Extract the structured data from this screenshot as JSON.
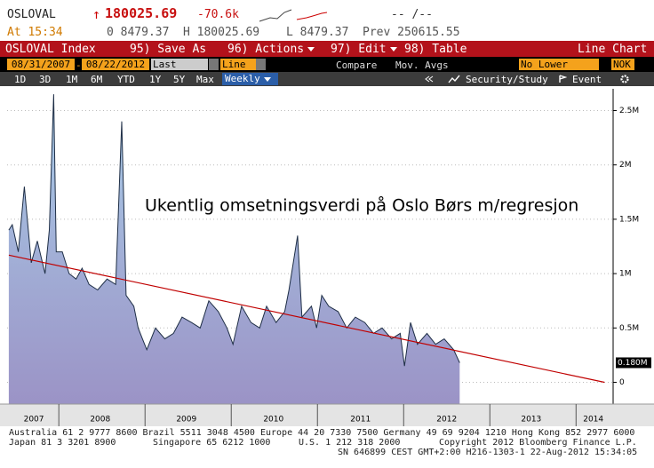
{
  "header": {
    "ticker": "OSLOVAL",
    "arrow": "↑",
    "last": "180025.69",
    "change": "-70.6k",
    "bid_ask": "-- /--",
    "time": "At 15:34",
    "open": "0 8479.37",
    "high": "H 180025.69",
    "low": "L 8479.37",
    "prev": "Prev 250615.55"
  },
  "menu": {
    "security": "OSLOVAL Index",
    "items": [
      "95) Save As",
      "96) Actions",
      "97) Edit",
      "98) Table"
    ],
    "chart_type": "Line Chart"
  },
  "settings": {
    "start": "08/31/2007",
    "dash": "-",
    "end": "08/22/2012",
    "field": "Last Price",
    "style": "Line",
    "compare": "Compare",
    "mov_avgs": "Mov. Avgs",
    "lower": "No Lower Chart",
    "currency": "NOK"
  },
  "toolbar": {
    "ranges": [
      "1D",
      "3D",
      "1M",
      "6M",
      "YTD",
      "1Y",
      "5Y",
      "Max"
    ],
    "period": "Weekly",
    "security_study": "Security/Study",
    "event": "Event"
  },
  "chart_data": {
    "type": "area",
    "annotation": "Ukentlig omsetningsverdi på Oslo Børs m/regresjon",
    "x": [
      2007.42,
      2007.46,
      2007.53,
      2007.6,
      2007.68,
      2007.75,
      2007.84,
      2007.89,
      2007.94,
      2007.97,
      2008.04,
      2008.12,
      2008.2,
      2008.27,
      2008.35,
      2008.45,
      2008.56,
      2008.66,
      2008.73,
      2008.78,
      2008.87,
      2008.92,
      2008.97,
      2009.02,
      2009.12,
      2009.23,
      2009.33,
      2009.43,
      2009.54,
      2009.64,
      2009.74,
      2009.85,
      2009.95,
      2010.02,
      2010.12,
      2010.23,
      2010.33,
      2010.41,
      2010.52,
      2010.62,
      2010.67,
      2010.77,
      2010.82,
      2010.93,
      2010.99,
      2011.05,
      2011.13,
      2011.24,
      2011.34,
      2011.44,
      2011.55,
      2011.65,
      2011.75,
      2011.86,
      2011.96,
      2012.01,
      2012.08,
      2012.16,
      2012.27,
      2012.37,
      2012.47,
      2012.58,
      2012.65
    ],
    "series": [
      {
        "color": "#1e2e46",
        "last_label": "0.180M",
        "values": [
          1.4,
          1.45,
          1.2,
          1.8,
          1.1,
          1.3,
          1.0,
          1.4,
          2.65,
          1.2,
          1.2,
          1.0,
          0.95,
          1.05,
          0.9,
          0.85,
          0.95,
          0.9,
          2.4,
          0.8,
          0.7,
          0.5,
          0.4,
          0.3,
          0.5,
          0.4,
          0.45,
          0.6,
          0.55,
          0.5,
          0.75,
          0.65,
          0.5,
          0.35,
          0.7,
          0.55,
          0.5,
          0.7,
          0.55,
          0.65,
          0.85,
          1.35,
          0.6,
          0.7,
          0.5,
          0.8,
          0.7,
          0.65,
          0.5,
          0.6,
          0.55,
          0.45,
          0.5,
          0.4,
          0.45,
          0.15,
          0.55,
          0.35,
          0.45,
          0.35,
          0.4,
          0.3,
          0.18
        ]
      }
    ],
    "trendline": {
      "color": "#c00000",
      "x": [
        2007.42,
        2014.33
      ],
      "values": [
        1.17,
        0
      ]
    },
    "xlim": [
      2007.4,
      2014.43
    ],
    "xgrid": [
      2008,
      2009,
      2010,
      2011,
      2012,
      2013,
      2014
    ],
    "xticks": [
      {
        "value": 2007.71,
        "label": "2007"
      },
      {
        "value": 2008.48,
        "label": "2008"
      },
      {
        "value": 2009.48,
        "label": "2009"
      },
      {
        "value": 2010.49,
        "label": "2010"
      },
      {
        "value": 2011.5,
        "label": "2011"
      },
      {
        "value": 2012.5,
        "label": "2012"
      },
      {
        "value": 2013.48,
        "label": "2013"
      },
      {
        "value": 2014.2,
        "label": "2014"
      }
    ],
    "ylim": [
      -0.2,
      2.7
    ],
    "yticks": [
      0,
      {
        "value": 0.5,
        "label": "0.5M"
      },
      {
        "value": 1,
        "label": "1M"
      },
      {
        "value": 1.5,
        "label": "1.5M"
      },
      {
        "value": 2,
        "label": "2M"
      },
      {
        "value": 2.5,
        "label": "2.5M"
      }
    ],
    "grid": true
  },
  "footer": {
    "line1": "Australia 61 2 9777 8600 Brazil 5511 3048 4500 Europe 44 20 7330 7500 Germany 49 69 9204 1210 Hong Kong 852 2977 6000",
    "line2": [
      "Japan 81 3 3201 8900",
      "Singapore 65 6212 1000",
      "U.S. 1 212 318 2000",
      "Copyright 2012 Bloomberg Finance L.P."
    ],
    "line3": "SN 646899 CEST GMT+2:00 H216-1303-1 22-Aug-2012 15:34:05"
  }
}
